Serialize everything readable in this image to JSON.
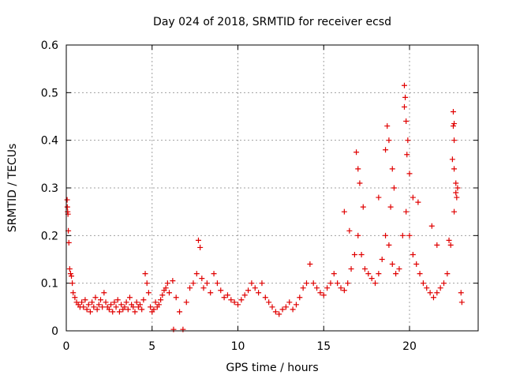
{
  "chart_data": {
    "type": "scatter",
    "title": "Day 024 of 2018, SRMTID for receiver ecsd",
    "xlabel": "GPS time / hours",
    "ylabel": "SRMTID / TECUs",
    "xlim": [
      0,
      24
    ],
    "ylim": [
      0,
      0.6
    ],
    "xticks": [
      0,
      5,
      10,
      15,
      20
    ],
    "xtick_labels": [
      "0",
      "5",
      "10",
      "15",
      "20"
    ],
    "yticks": [
      0,
      0.1,
      0.2,
      0.3,
      0.4,
      0.5,
      0.6
    ],
    "ytick_labels": [
      "0",
      "0.1",
      "0.2",
      "0.3",
      "0.4",
      "0.5",
      "0.6"
    ],
    "grid": true,
    "marker": "plus",
    "color": "#e00000",
    "series": [
      {
        "name": "SRMTID",
        "points": [
          [
            0.05,
            0.275
          ],
          [
            0.06,
            0.26
          ],
          [
            0.08,
            0.25
          ],
          [
            0.1,
            0.245
          ],
          [
            0.12,
            0.21
          ],
          [
            0.15,
            0.185
          ],
          [
            0.2,
            0.13
          ],
          [
            0.25,
            0.12
          ],
          [
            0.3,
            0.115
          ],
          [
            0.35,
            0.1
          ],
          [
            0.4,
            0.08
          ],
          [
            0.5,
            0.07
          ],
          [
            0.6,
            0.06
          ],
          [
            0.7,
            0.055
          ],
          [
            0.8,
            0.05
          ],
          [
            0.9,
            0.06
          ],
          [
            1.0,
            0.05
          ],
          [
            1.1,
            0.065
          ],
          [
            1.2,
            0.045
          ],
          [
            1.3,
            0.055
          ],
          [
            1.4,
            0.04
          ],
          [
            1.5,
            0.06
          ],
          [
            1.6,
            0.05
          ],
          [
            1.7,
            0.07
          ],
          [
            1.8,
            0.045
          ],
          [
            1.9,
            0.055
          ],
          [
            2.0,
            0.065
          ],
          [
            2.1,
            0.05
          ],
          [
            2.2,
            0.08
          ],
          [
            2.3,
            0.06
          ],
          [
            2.4,
            0.05
          ],
          [
            2.5,
            0.045
          ],
          [
            2.6,
            0.055
          ],
          [
            2.7,
            0.04
          ],
          [
            2.8,
            0.06
          ],
          [
            2.9,
            0.05
          ],
          [
            3.0,
            0.065
          ],
          [
            3.1,
            0.04
          ],
          [
            3.2,
            0.055
          ],
          [
            3.3,
            0.045
          ],
          [
            3.4,
            0.05
          ],
          [
            3.5,
            0.06
          ],
          [
            3.6,
            0.045
          ],
          [
            3.7,
            0.07
          ],
          [
            3.8,
            0.055
          ],
          [
            3.9,
            0.05
          ],
          [
            4.0,
            0.04
          ],
          [
            4.1,
            0.06
          ],
          [
            4.2,
            0.05
          ],
          [
            4.3,
            0.055
          ],
          [
            4.4,
            0.045
          ],
          [
            4.5,
            0.065
          ],
          [
            4.6,
            0.12
          ],
          [
            4.7,
            0.1
          ],
          [
            4.8,
            0.08
          ],
          [
            4.9,
            0.05
          ],
          [
            5.0,
            0.04
          ],
          [
            5.1,
            0.045
          ],
          [
            5.2,
            0.06
          ],
          [
            5.3,
            0.05
          ],
          [
            5.4,
            0.055
          ],
          [
            5.5,
            0.065
          ],
          [
            5.6,
            0.075
          ],
          [
            5.7,
            0.085
          ],
          [
            5.8,
            0.09
          ],
          [
            5.9,
            0.1
          ],
          [
            6.0,
            0.08
          ],
          [
            6.2,
            0.105
          ],
          [
            6.25,
            0.003
          ],
          [
            6.4,
            0.07
          ],
          [
            6.6,
            0.04
          ],
          [
            6.8,
            0.003
          ],
          [
            7.0,
            0.06
          ],
          [
            7.2,
            0.09
          ],
          [
            7.4,
            0.1
          ],
          [
            7.6,
            0.12
          ],
          [
            7.7,
            0.19
          ],
          [
            7.8,
            0.175
          ],
          [
            7.9,
            0.11
          ],
          [
            8.0,
            0.09
          ],
          [
            8.2,
            0.1
          ],
          [
            8.4,
            0.08
          ],
          [
            8.6,
            0.12
          ],
          [
            8.8,
            0.1
          ],
          [
            9.0,
            0.085
          ],
          [
            9.2,
            0.07
          ],
          [
            9.4,
            0.075
          ],
          [
            9.6,
            0.065
          ],
          [
            9.8,
            0.06
          ],
          [
            10.0,
            0.055
          ],
          [
            10.2,
            0.065
          ],
          [
            10.4,
            0.075
          ],
          [
            10.6,
            0.085
          ],
          [
            10.8,
            0.1
          ],
          [
            11.0,
            0.09
          ],
          [
            11.2,
            0.08
          ],
          [
            11.4,
            0.1
          ],
          [
            11.6,
            0.07
          ],
          [
            11.8,
            0.06
          ],
          [
            12.0,
            0.05
          ],
          [
            12.2,
            0.04
          ],
          [
            12.4,
            0.035
          ],
          [
            12.6,
            0.045
          ],
          [
            12.8,
            0.05
          ],
          [
            13.0,
            0.06
          ],
          [
            13.2,
            0.045
          ],
          [
            13.4,
            0.055
          ],
          [
            13.6,
            0.07
          ],
          [
            13.8,
            0.09
          ],
          [
            14.0,
            0.1
          ],
          [
            14.2,
            0.14
          ],
          [
            14.4,
            0.1
          ],
          [
            14.6,
            0.09
          ],
          [
            14.8,
            0.08
          ],
          [
            15.0,
            0.075
          ],
          [
            15.2,
            0.09
          ],
          [
            15.4,
            0.1
          ],
          [
            15.6,
            0.12
          ],
          [
            15.8,
            0.1
          ],
          [
            16.0,
            0.09
          ],
          [
            16.2,
            0.085
          ],
          [
            16.4,
            0.1
          ],
          [
            16.6,
            0.13
          ],
          [
            16.8,
            0.16
          ],
          [
            17.0,
            0.2
          ],
          [
            17.2,
            0.16
          ],
          [
            17.4,
            0.13
          ],
          [
            17.6,
            0.12
          ],
          [
            17.8,
            0.11
          ],
          [
            18.0,
            0.1
          ],
          [
            18.2,
            0.12
          ],
          [
            18.4,
            0.15
          ],
          [
            18.6,
            0.2
          ],
          [
            18.8,
            0.18
          ],
          [
            19.0,
            0.14
          ],
          [
            19.2,
            0.12
          ],
          [
            19.4,
            0.13
          ],
          [
            19.6,
            0.2
          ],
          [
            19.8,
            0.25
          ],
          [
            20.0,
            0.2
          ],
          [
            20.2,
            0.16
          ],
          [
            20.4,
            0.14
          ],
          [
            20.6,
            0.12
          ],
          [
            20.8,
            0.1
          ],
          [
            21.0,
            0.09
          ],
          [
            21.2,
            0.08
          ],
          [
            21.4,
            0.07
          ],
          [
            21.6,
            0.08
          ],
          [
            21.8,
            0.09
          ],
          [
            22.0,
            0.1
          ],
          [
            22.2,
            0.12
          ],
          [
            22.4,
            0.18
          ],
          [
            22.6,
            0.25
          ],
          [
            22.7,
            0.29
          ],
          [
            16.9,
            0.375
          ],
          [
            17.0,
            0.34
          ],
          [
            17.1,
            0.31
          ],
          [
            18.7,
            0.43
          ],
          [
            18.8,
            0.4
          ],
          [
            18.6,
            0.38
          ],
          [
            19.0,
            0.34
          ],
          [
            19.1,
            0.3
          ],
          [
            19.7,
            0.515
          ],
          [
            19.75,
            0.49
          ],
          [
            19.7,
            0.47
          ],
          [
            19.8,
            0.44
          ],
          [
            19.9,
            0.4
          ],
          [
            19.85,
            0.37
          ],
          [
            20.0,
            0.33
          ],
          [
            20.2,
            0.28
          ],
          [
            22.55,
            0.46
          ],
          [
            22.6,
            0.435
          ],
          [
            22.55,
            0.43
          ],
          [
            22.6,
            0.4
          ],
          [
            22.5,
            0.36
          ],
          [
            22.6,
            0.34
          ],
          [
            22.7,
            0.31
          ],
          [
            22.8,
            0.3
          ],
          [
            22.75,
            0.28
          ],
          [
            16.2,
            0.25
          ],
          [
            16.5,
            0.21
          ],
          [
            17.3,
            0.26
          ],
          [
            18.2,
            0.28
          ],
          [
            18.9,
            0.26
          ],
          [
            20.5,
            0.27
          ],
          [
            21.3,
            0.22
          ],
          [
            21.6,
            0.18
          ],
          [
            22.3,
            0.19
          ],
          [
            23.0,
            0.08
          ],
          [
            23.05,
            0.06
          ]
        ]
      }
    ]
  }
}
